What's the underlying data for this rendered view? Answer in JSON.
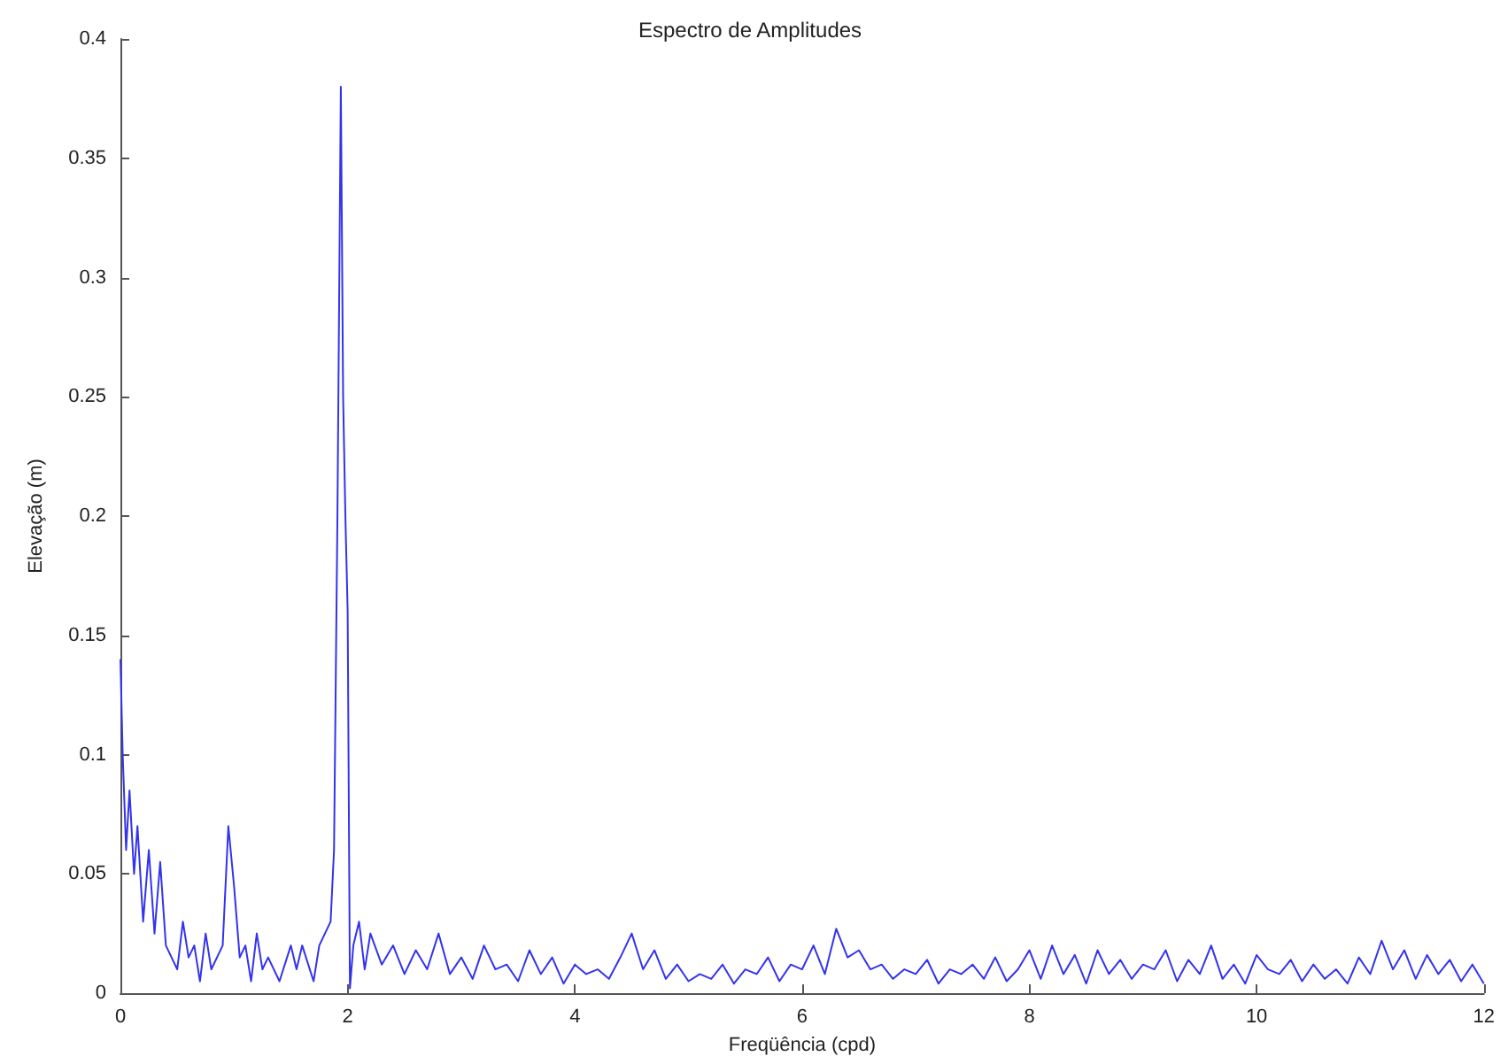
{
  "chart_data": {
    "type": "line",
    "title": "Espectro de Amplitudes",
    "xlabel": "Freqüência (cpd)",
    "ylabel": "Elevação (m)",
    "xlim": [
      0,
      12
    ],
    "xticks": [
      0,
      2,
      4,
      6,
      8,
      10,
      12
    ],
    "ylim": [
      0,
      0.4
    ],
    "yticks": [
      0,
      0.05,
      0.1,
      0.15,
      0.2,
      0.25,
      0.3,
      0.35,
      0.4
    ],
    "grid": false,
    "marker": "none",
    "line_style": "solid",
    "series": [
      {
        "color": "#3333ee",
        "x": [
          0,
          0.02,
          0.05,
          0.08,
          0.12,
          0.15,
          0.2,
          0.25,
          0.3,
          0.35,
          0.4,
          0.45,
          0.5,
          0.55,
          0.6,
          0.65,
          0.7,
          0.75,
          0.8,
          0.85,
          0.9,
          0.95,
          1.0,
          1.05,
          1.1,
          1.15,
          1.2,
          1.25,
          1.3,
          1.4,
          1.5,
          1.55,
          1.6,
          1.7,
          1.75,
          1.8,
          1.85,
          1.88,
          1.91,
          1.94,
          1.96,
          1.98,
          2.0,
          2.02,
          2.05,
          2.1,
          2.15,
          2.2,
          2.3,
          2.4,
          2.5,
          2.6,
          2.7,
          2.8,
          2.9,
          3.0,
          3.1,
          3.2,
          3.3,
          3.4,
          3.5,
          3.6,
          3.7,
          3.8,
          3.9,
          4.0,
          4.1,
          4.2,
          4.3,
          4.4,
          4.5,
          4.6,
          4.7,
          4.8,
          4.9,
          5.0,
          5.1,
          5.2,
          5.3,
          5.4,
          5.5,
          5.6,
          5.7,
          5.8,
          5.9,
          6.0,
          6.1,
          6.2,
          6.3,
          6.4,
          6.5,
          6.6,
          6.7,
          6.8,
          6.9,
          7.0,
          7.1,
          7.2,
          7.3,
          7.4,
          7.5,
          7.6,
          7.7,
          7.8,
          7.9,
          8.0,
          8.1,
          8.2,
          8.3,
          8.4,
          8.5,
          8.6,
          8.7,
          8.8,
          8.9,
          9.0,
          9.1,
          9.2,
          9.3,
          9.4,
          9.5,
          9.6,
          9.7,
          9.8,
          9.9,
          10.0,
          10.1,
          10.2,
          10.3,
          10.4,
          10.5,
          10.6,
          10.7,
          10.8,
          10.9,
          11.0,
          11.1,
          11.2,
          11.3,
          11.4,
          11.5,
          11.6,
          11.7,
          11.8,
          11.9,
          12.0
        ],
        "values": [
          0.14,
          0.1,
          0.06,
          0.085,
          0.05,
          0.07,
          0.03,
          0.06,
          0.025,
          0.055,
          0.02,
          0.015,
          0.01,
          0.03,
          0.015,
          0.02,
          0.005,
          0.025,
          0.01,
          0.015,
          0.02,
          0.07,
          0.045,
          0.015,
          0.02,
          0.005,
          0.025,
          0.01,
          0.015,
          0.005,
          0.02,
          0.01,
          0.02,
          0.005,
          0.02,
          0.025,
          0.03,
          0.06,
          0.2,
          0.38,
          0.25,
          0.2,
          0.16,
          0.002,
          0.02,
          0.03,
          0.01,
          0.025,
          0.012,
          0.02,
          0.008,
          0.018,
          0.01,
          0.025,
          0.008,
          0.015,
          0.006,
          0.02,
          0.01,
          0.012,
          0.005,
          0.018,
          0.008,
          0.015,
          0.004,
          0.012,
          0.008,
          0.01,
          0.006,
          0.015,
          0.025,
          0.01,
          0.018,
          0.006,
          0.012,
          0.005,
          0.008,
          0.006,
          0.012,
          0.004,
          0.01,
          0.008,
          0.015,
          0.005,
          0.012,
          0.01,
          0.02,
          0.008,
          0.027,
          0.015,
          0.018,
          0.01,
          0.012,
          0.006,
          0.01,
          0.008,
          0.014,
          0.004,
          0.01,
          0.008,
          0.012,
          0.006,
          0.015,
          0.005,
          0.01,
          0.018,
          0.006,
          0.02,
          0.008,
          0.016,
          0.004,
          0.018,
          0.008,
          0.014,
          0.006,
          0.012,
          0.01,
          0.018,
          0.005,
          0.014,
          0.008,
          0.02,
          0.006,
          0.012,
          0.004,
          0.016,
          0.01,
          0.008,
          0.014,
          0.005,
          0.012,
          0.006,
          0.01,
          0.004,
          0.015,
          0.008,
          0.022,
          0.01,
          0.018,
          0.006,
          0.016,
          0.008,
          0.014,
          0.005,
          0.012,
          0.004
        ]
      }
    ]
  }
}
